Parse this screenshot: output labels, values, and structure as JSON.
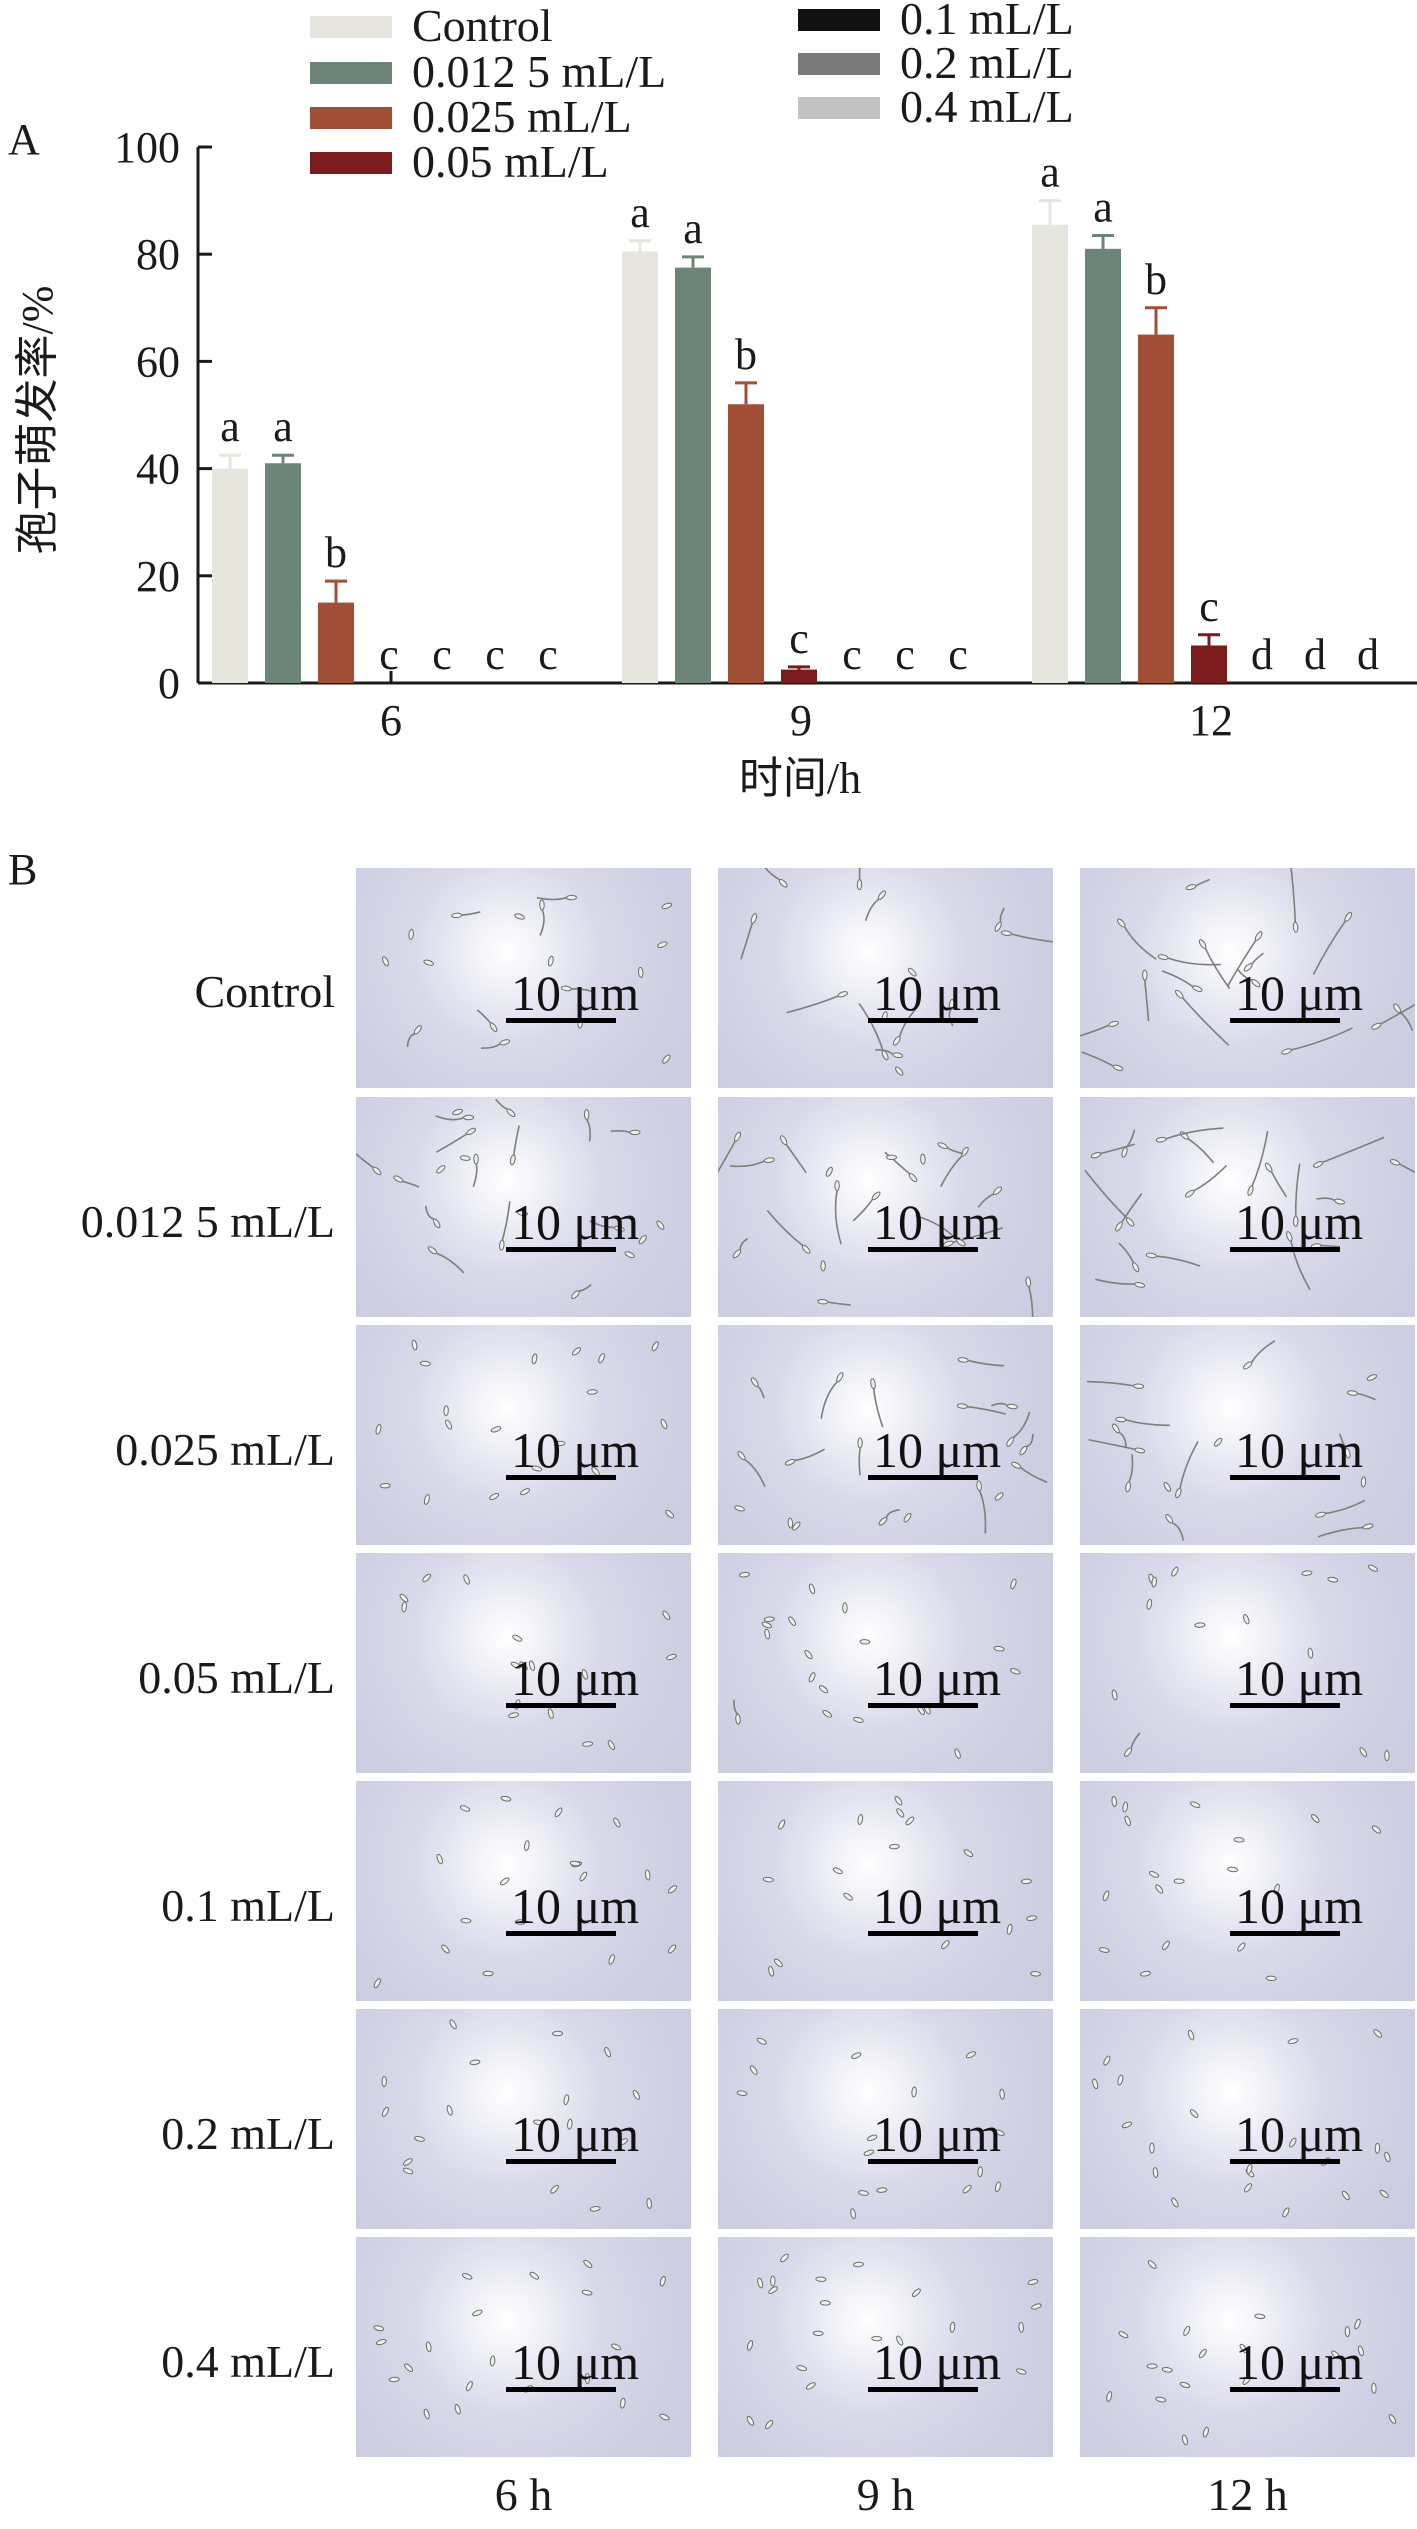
{
  "panel_a_label": "A",
  "panel_b_label": "B",
  "chart_data": {
    "type": "bar",
    "categories": [
      "6",
      "9",
      "12"
    ],
    "xlabel": "时间/h",
    "ylabel": "孢子萌发率/%",
    "ylim": [
      0,
      100
    ],
    "yticks": [
      0,
      20,
      40,
      60,
      80,
      100
    ],
    "legend_position": "top",
    "series": [
      {
        "name": "Control",
        "color": "#e6e6df",
        "values": [
          40,
          80.5,
          85.5
        ],
        "errors": [
          2.5,
          2,
          4.5
        ],
        "letters": [
          "a",
          "a",
          "a"
        ]
      },
      {
        "name": "0.012 5 mL/L",
        "color": "#6d8478",
        "values": [
          41,
          77.5,
          81
        ],
        "errors": [
          1.5,
          2,
          2.5
        ],
        "letters": [
          "a",
          "a",
          "a"
        ]
      },
      {
        "name": "0.025 mL/L",
        "color": "#a04e36",
        "values": [
          15,
          52,
          65
        ],
        "errors": [
          4,
          4,
          5
        ],
        "letters": [
          "b",
          "b",
          "b"
        ]
      },
      {
        "name": "0.05 mL/L",
        "color": "#7a1c1c",
        "values": [
          0,
          2.5,
          7
        ],
        "errors": [
          0,
          0.5,
          2
        ],
        "letters": [
          "c",
          "c",
          "c"
        ]
      },
      {
        "name": "0.1 mL/L",
        "color": "#111111",
        "values": [
          0,
          0,
          0
        ],
        "errors": [
          0,
          0,
          0
        ],
        "letters": [
          "c",
          "c",
          "d"
        ]
      },
      {
        "name": "0.2 mL/L",
        "color": "#7a7a7a",
        "values": [
          0,
          0,
          0
        ],
        "errors": [
          0,
          0,
          0
        ],
        "letters": [
          "c",
          "c",
          "d"
        ]
      },
      {
        "name": "0.4 mL/L",
        "color": "#c2c2c2",
        "values": [
          0,
          0,
          0
        ],
        "errors": [
          0,
          0,
          0
        ],
        "letters": [
          "c",
          "c",
          "d"
        ]
      }
    ]
  },
  "micrographs": {
    "rows": [
      "Control",
      "0.012 5 mL/L",
      "0.025 mL/L",
      "0.05 mL/L",
      "0.1 mL/L",
      "0.2 mL/L",
      "0.4 mL/L"
    ],
    "columns": [
      "6 h",
      "9 h",
      "12 h"
    ],
    "scale_label": "10 μm",
    "growth_level": [
      [
        0.45,
        0.75,
        1.0
      ],
      [
        0.5,
        0.8,
        1.0
      ],
      [
        0.2,
        0.55,
        0.7
      ],
      [
        0.0,
        0.05,
        0.1
      ],
      [
        0.0,
        0.0,
        0.0
      ],
      [
        0.0,
        0.0,
        0.0
      ],
      [
        0.0,
        0.0,
        0.0
      ]
    ]
  }
}
